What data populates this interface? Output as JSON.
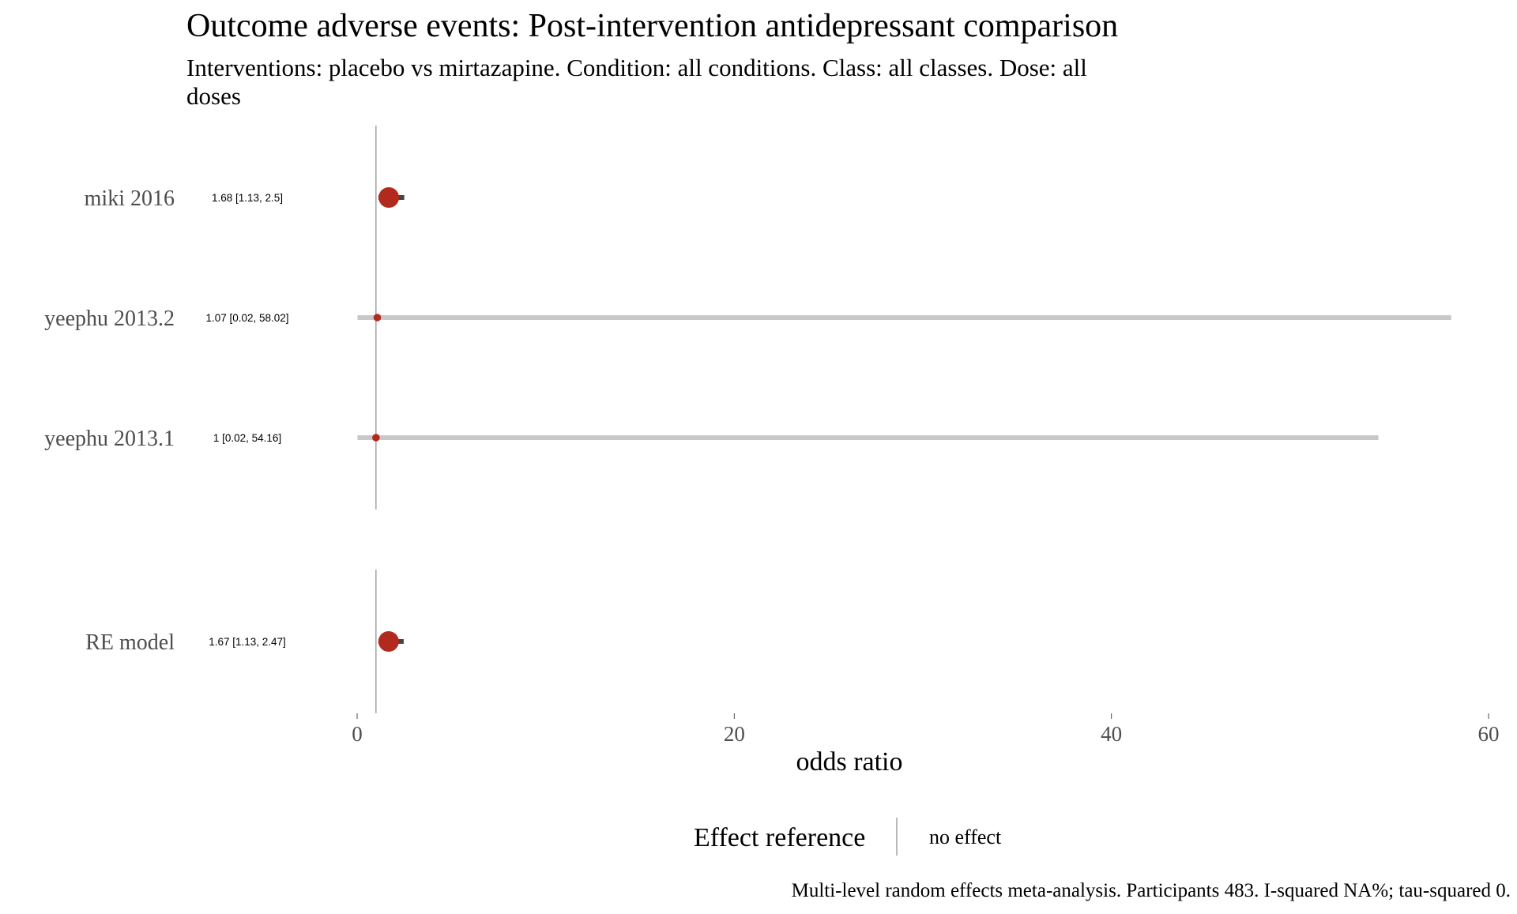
{
  "chart_data": {
    "type": "forest",
    "title": "Outcome adverse events: Post-intervention antidepressant comparison",
    "subtitle_lines": [
      "Interventions: placebo vs mirtazapine. Condition: all conditions. Class: all classes. Dose: all",
      "doses"
    ],
    "xlabel": "odds ratio",
    "xlim": [
      0,
      60
    ],
    "xticks": [
      0,
      20,
      40,
      60
    ],
    "reference_line": 1,
    "studies": [
      {
        "name": "miki 2016",
        "estimate": 1.68,
        "lower": 1.13,
        "upper": 2.5,
        "label": "1.68 [1.13, 2.5]",
        "weight": "large"
      },
      {
        "name": "yeephu 2013.2",
        "estimate": 1.07,
        "lower": 0.02,
        "upper": 58.02,
        "label": "1.07 [0.02, 58.02]",
        "weight": "small"
      },
      {
        "name": "yeephu 2013.1",
        "estimate": 1,
        "lower": 0.02,
        "upper": 54.16,
        "label": "1 [0.02, 54.16]",
        "weight": "small"
      }
    ],
    "summary": {
      "name": "RE model",
      "estimate": 1.67,
      "lower": 1.13,
      "upper": 2.47,
      "label": "1.67 [1.13, 2.47]"
    },
    "legend": {
      "title": "Effect reference",
      "label": "no effect",
      "placement": "bottom"
    },
    "caption": "Multi-level random effects meta-analysis. Participants 483. I-squared NA%; tau-squared 0.",
    "colors": {
      "point": "#b22a1e",
      "ci_narrow": "#444444",
      "ci_wide": "#c8c8c8",
      "reference": "#8c8c8c"
    }
  }
}
